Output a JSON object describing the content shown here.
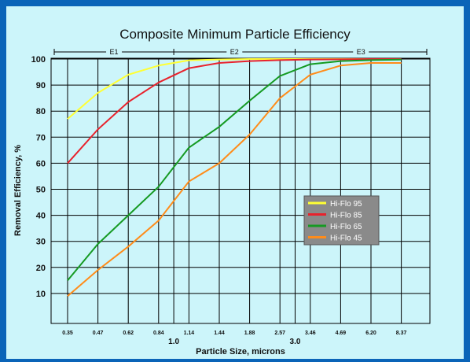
{
  "chart_data": {
    "type": "line",
    "title": "Composite Minimum Particle Efficiency",
    "xlabel": "Particle Size, microns",
    "ylabel": "Removal Efficiency, %",
    "ylim": [
      0,
      100
    ],
    "yticks": [
      10,
      20,
      30,
      40,
      50,
      60,
      70,
      80,
      90,
      100
    ],
    "categories": [
      "0.35",
      "0.47",
      "0.62",
      "0.84",
      "1.14",
      "1.44",
      "1.88",
      "2.57",
      "3.46",
      "4.69",
      "6.20",
      "8.37"
    ],
    "x_major_labels": [
      {
        "label": "1.0",
        "after_index": 3
      },
      {
        "label": "3.0",
        "after_index": 7
      }
    ],
    "bands": [
      {
        "label": "E1",
        "from_index": 0,
        "to_index": 3
      },
      {
        "label": "E2",
        "from_index": 4,
        "to_index": 7
      },
      {
        "label": "E3",
        "from_index": 8,
        "to_index": 11
      }
    ],
    "grid": true,
    "legend_position": "center-right",
    "series": [
      {
        "name": "Hi-Flo 95",
        "color": "#ffff33",
        "values": [
          77,
          87,
          94,
          97.5,
          99.5,
          99.8,
          100,
          100,
          100,
          100,
          100,
          100
        ]
      },
      {
        "name": "Hi-Flo 85",
        "color": "#e8222c",
        "values": [
          60,
          73,
          83.5,
          91,
          96.5,
          98.5,
          99.2,
          99.6,
          99.8,
          99.9,
          100,
          100
        ]
      },
      {
        "name": "Hi-Flo 65",
        "color": "#159a22",
        "values": [
          15,
          29,
          40,
          51,
          66,
          74,
          84,
          93.5,
          98,
          99.2,
          99.6,
          99.8
        ]
      },
      {
        "name": "Hi-Flo 45",
        "color": "#ff8c1a",
        "values": [
          9,
          19,
          28,
          38,
          53,
          60,
          71,
          85,
          94,
          97.5,
          98.5,
          98.5
        ]
      }
    ]
  }
}
